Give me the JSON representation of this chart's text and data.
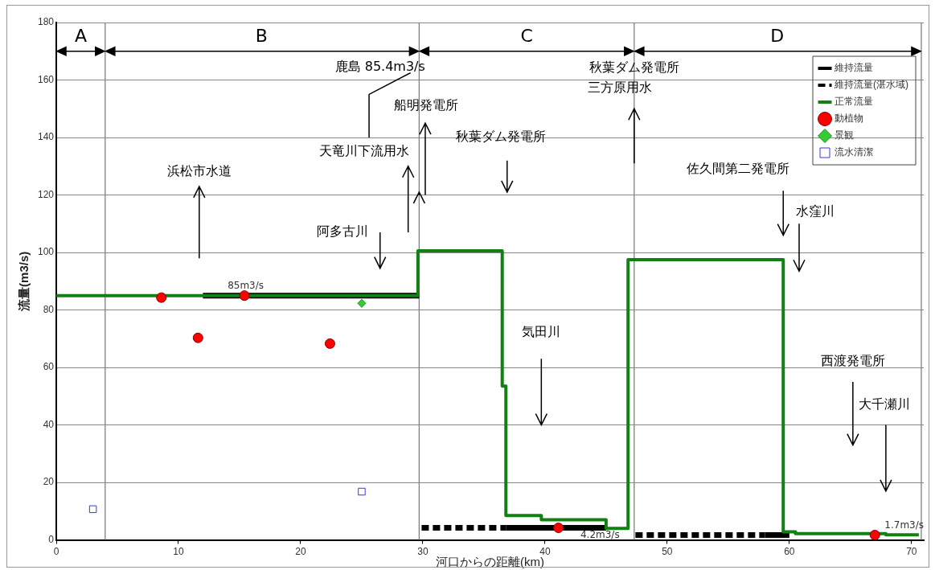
{
  "chart_data": {
    "type": "line",
    "xlabel": "河口からの距離(km)",
    "ylabel": "流量(m3/s)",
    "xlim": [
      0,
      71
    ],
    "xticks": [
      0,
      10,
      20,
      30,
      40,
      50,
      60,
      70
    ],
    "ylim": [
      0,
      180
    ],
    "yticks": [
      0,
      20,
      40,
      60,
      80,
      100,
      120,
      140,
      160,
      180
    ],
    "grid": "y",
    "legend": "top right",
    "series": [
      {
        "name": "維持流量",
        "color": "#000000",
        "line_style": "solid",
        "marker": "none",
        "x": [
          12,
          29.7,
          33,
          36.8,
          45,
          50,
          58,
          60
        ],
        "values": [
          85,
          85,
          null,
          4.2,
          4.2,
          null,
          1.7,
          1.7
        ]
      },
      {
        "name": "維持流量(湛水域)",
        "color": "#000000",
        "line_style": "dashed",
        "marker": "none",
        "x": [
          29.9,
          36.8,
          40,
          47.4,
          58
        ],
        "values": [
          4.2,
          4.2,
          null,
          1.7,
          1.7
        ]
      },
      {
        "name": "正常流量",
        "type": "step",
        "color": "#138013",
        "line_style": "solid",
        "marker": "none",
        "x": [
          0,
          29.6,
          36.5,
          36.8,
          39.7,
          45,
          46.8,
          59.5,
          60.5,
          67.9,
          70.6
        ],
        "values": [
          85,
          100.6,
          53.5,
          8.5,
          7,
          4,
          97.5,
          2.8,
          2.2,
          1.8,
          1.8
        ]
      },
      {
        "name": "動植物",
        "type": "scatter",
        "color": "#ff0000",
        "marker": "circle",
        "x": [
          8.6,
          11.6,
          15.4,
          22.4,
          41.1,
          67
        ],
        "values": [
          84.3,
          70.3,
          85,
          68.3,
          4.2,
          1.7
        ]
      },
      {
        "name": "景観",
        "type": "scatter",
        "color": "#33cc33",
        "marker": "diamond",
        "x": [
          25
        ],
        "values": [
          82.3
        ]
      },
      {
        "name": "流水清潔",
        "type": "scatter",
        "color": "#3333ff",
        "marker": "square",
        "x": [
          3,
          25
        ],
        "values": [
          10.7,
          16.8
        ]
      }
    ],
    "ref_lines": [
      {
        "axis": "x",
        "value": 4,
        "color": "#808080"
      },
      {
        "axis": "x",
        "value": 29.7,
        "color": "#808080"
      },
      {
        "axis": "x",
        "value": 47.3,
        "color": "#808080"
      },
      {
        "axis": "x",
        "value": 70.8,
        "color": "#808080"
      }
    ],
    "annotations": [
      "A",
      "B",
      "C",
      "D",
      "浜松市水道",
      "鹿島 85.4m3/s",
      {
        "text": "船明発電所",
        "x": 29.7,
        "y": 121
      },
      "天竜川下流用水",
      "阿多古川",
      "秋葉ダム発電所",
      "秋葉ダム発電所",
      {
        "text": "三方原用水",
        "x": 47.3,
        "y": 150
      },
      "佐久間第二発電所",
      "水窪川",
      "気田川",
      "西渡発電所",
      "大千瀬川",
      {
        "text": "85m3/s",
        "x": 15.5,
        "y": 85
      },
      {
        "text": "4.2m3/s",
        "x": 44.5,
        "y": 4.2
      },
      {
        "text": "1.7m3/s",
        "x": 69.4,
        "y": 1.7
      }
    ]
  }
}
